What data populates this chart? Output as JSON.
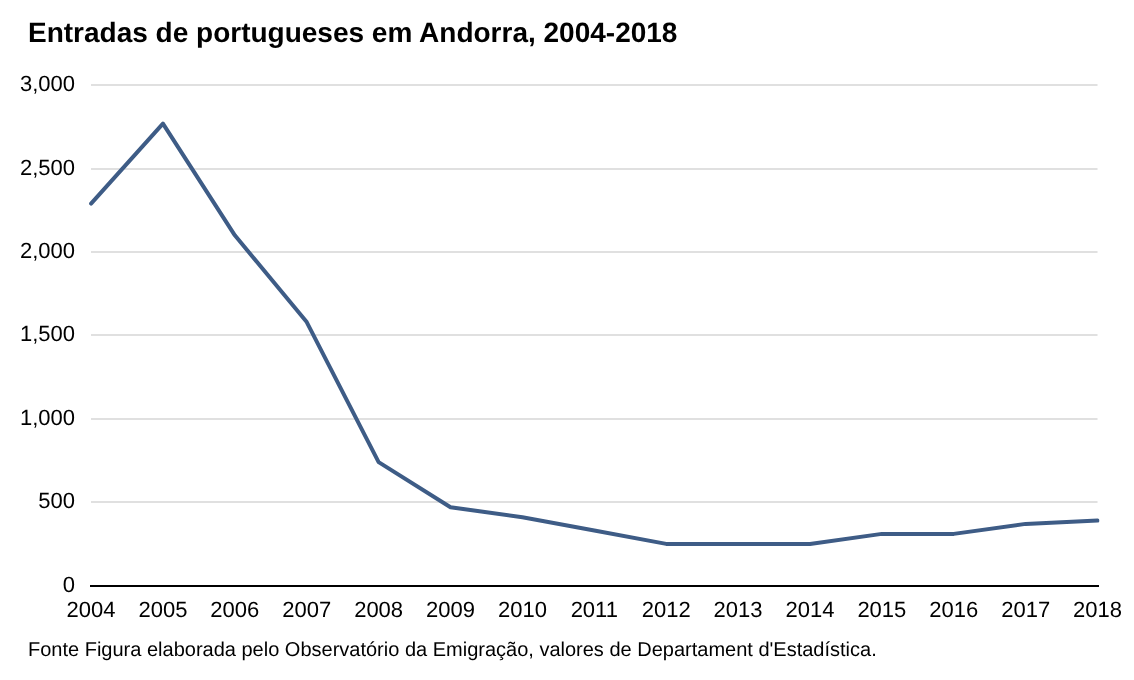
{
  "chart_data": {
    "type": "line",
    "title": "Entradas de portugueses em Andorra, 2004-2018",
    "categories": [
      "2004",
      "2005",
      "2006",
      "2007",
      "2008",
      "2009",
      "2010",
      "2011",
      "2012",
      "2013",
      "2014",
      "2015",
      "2016",
      "2017",
      "2018"
    ],
    "series": [
      {
        "color": "#3e5c86",
        "values": [
          2290,
          2770,
          2100,
          1580,
          740,
          470,
          410,
          330,
          250,
          250,
          250,
          310,
          310,
          370,
          390
        ]
      }
    ],
    "ylim": [
      0,
      3000
    ],
    "yticks": [
      {
        "value": 0,
        "label": "0"
      },
      {
        "value": 500,
        "label": "500"
      },
      {
        "value": 1000,
        "label": "1,000"
      },
      {
        "value": 1500,
        "label": "1,500"
      },
      {
        "value": 2000,
        "label": "2,000"
      },
      {
        "value": 2500,
        "label": "2,500"
      },
      {
        "value": 3000,
        "label": "3,000"
      }
    ],
    "grid": "y",
    "legend": false,
    "marker": "none",
    "line_style": "solid",
    "annotations": [
      "Fonte Figura elaborada pelo Observatório da Emigração, valores de Departament d'Estadística."
    ]
  }
}
